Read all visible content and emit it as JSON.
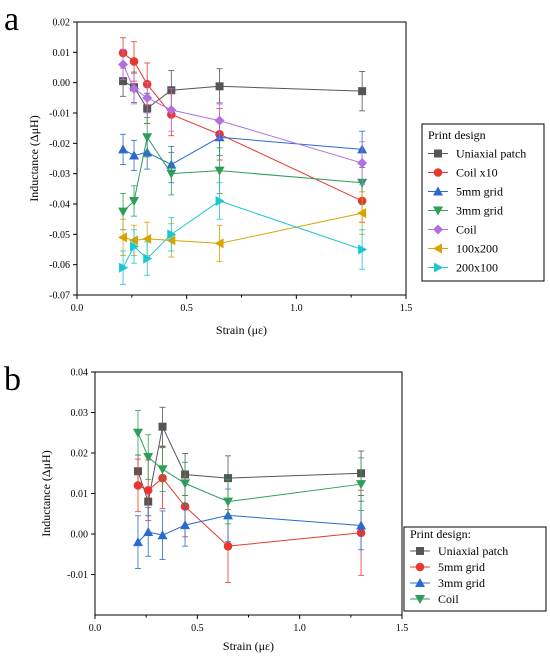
{
  "chart_data": [
    {
      "panel": "a",
      "type": "line",
      "xlabel": "Strain (με)",
      "ylabel": "Inductance (ΔμH)",
      "xlim": [
        0.0,
        1.5
      ],
      "ylim": [
        -0.07,
        0.02
      ],
      "xticks": [
        "0.0",
        "0.5",
        "1.0",
        "1.5"
      ],
      "yticks": [
        "0.02",
        "0.01",
        "0.00",
        "-0.01",
        "-0.02",
        "-0.03",
        "-0.04",
        "-0.05",
        "-0.06",
        "-0.07"
      ],
      "legend_title": "Print design",
      "legend_placement": "right",
      "x": [
        0.21,
        0.26,
        0.32,
        0.43,
        0.65,
        1.3
      ],
      "series": [
        {
          "name": "Uniaxial patch",
          "color": "#555555",
          "marker": "square",
          "values": [
            0.0005,
            -0.0015,
            -0.0085,
            -0.0025,
            -0.0012,
            -0.0028
          ],
          "errors": [
            0.005,
            0.005,
            0.005,
            0.0065,
            0.0058,
            0.0065
          ]
        },
        {
          "name": "Coil x10",
          "color": "#e8372e",
          "marker": "circle",
          "values": [
            0.0098,
            0.007,
            -0.0005,
            -0.0105,
            -0.017,
            -0.039
          ],
          "errors": [
            0.005,
            0.0065,
            0.007,
            0.007,
            0.0085,
            0.007
          ]
        },
        {
          "name": "5mm grid",
          "color": "#2a6acf",
          "marker": "triangle-up",
          "values": [
            -0.022,
            -0.024,
            -0.023,
            -0.027,
            -0.018,
            -0.022
          ],
          "errors": [
            0.005,
            0.005,
            0.0055,
            0.006,
            0.006,
            0.006
          ]
        },
        {
          "name": "3mm grid",
          "color": "#2e9d5a",
          "marker": "triangle-down",
          "values": [
            -0.0425,
            -0.039,
            -0.018,
            -0.03,
            -0.029,
            -0.033
          ],
          "errors": [
            0.006,
            0.005,
            0.0065,
            0.007,
            0.0075,
            0.007
          ]
        },
        {
          "name": "Coil",
          "color": "#b46ee0",
          "marker": "diamond",
          "values": [
            0.006,
            -0.002,
            -0.005,
            -0.009,
            -0.0125,
            -0.0265
          ],
          "errors": [
            0.005,
            0.005,
            0.005,
            0.007,
            0.006,
            0.007
          ]
        },
        {
          "name": "100x200",
          "color": "#d9a400",
          "marker": "triangle-left",
          "values": [
            -0.051,
            -0.052,
            -0.0515,
            -0.052,
            -0.053,
            -0.043
          ],
          "errors": [
            0.006,
            0.005,
            0.0055,
            0.0055,
            0.006,
            0.007
          ]
        },
        {
          "name": "200x100",
          "color": "#1cc7cf",
          "marker": "triangle-right",
          "values": [
            -0.061,
            -0.054,
            -0.058,
            -0.05,
            -0.039,
            -0.055
          ],
          "errors": [
            0.0055,
            0.0055,
            0.0055,
            0.0055,
            0.006,
            0.0065
          ]
        }
      ]
    },
    {
      "panel": "b",
      "type": "line",
      "xlabel": "Strain (με)",
      "ylabel": "Inductance (ΔμH)",
      "xlim": [
        0.0,
        1.5
      ],
      "ylim": [
        -0.02,
        0.04
      ],
      "xticks": [
        "0.0",
        "0.5",
        "1.0",
        "1.5"
      ],
      "yticks": [
        "0.04",
        "0.03",
        "0.02",
        "0.01",
        "0.00",
        "-0.01"
      ],
      "legend_title": "Print design:",
      "legend_placement": "right",
      "x": [
        0.21,
        0.26,
        0.33,
        0.44,
        0.65,
        1.3
      ],
      "series": [
        {
          "name": "Uniaxial patch",
          "color": "#555555",
          "marker": "square",
          "values": [
            0.0155,
            0.008,
            0.0265,
            0.0147,
            0.0138,
            0.015
          ],
          "errors": [
            0.004,
            0.0035,
            0.0048,
            0.0052,
            0.0055,
            0.0055
          ]
        },
        {
          "name": "5mm grid",
          "color": "#e8372e",
          "marker": "circle",
          "values": [
            0.012,
            0.0108,
            0.0138,
            0.0068,
            -0.003,
            0.0003
          ],
          "errors": [
            0.0065,
            0.0075,
            0.0075,
            0.0075,
            0.009,
            0.0105
          ]
        },
        {
          "name": "3mm grid",
          "color": "#2a6acf",
          "marker": "triangle-up",
          "values": [
            -0.002,
            0.0005,
            -0.0003,
            0.0022,
            0.0046,
            0.0021
          ],
          "errors": [
            0.0065,
            0.006,
            0.006,
            0.0052,
            0.0065,
            0.006
          ]
        },
        {
          "name": "Coil",
          "color": "#2e9d5a",
          "marker": "triangle-down",
          "values": [
            0.025,
            0.019,
            0.016,
            0.0125,
            0.008,
            0.0123
          ],
          "errors": [
            0.0055,
            0.0055,
            0.0055,
            0.0052,
            0.0055,
            0.0065
          ]
        }
      ]
    }
  ]
}
